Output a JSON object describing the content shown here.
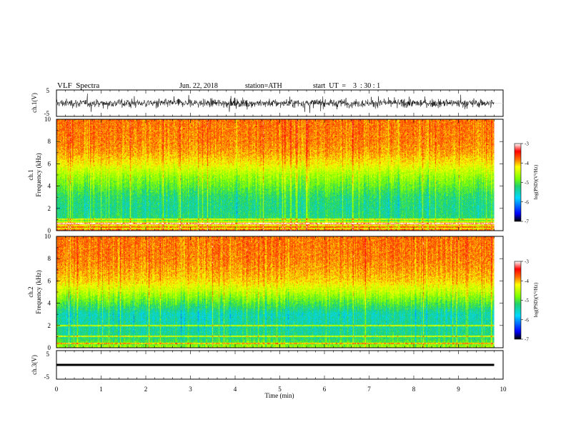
{
  "header": {
    "title": "VLF  Spectra",
    "date": "Jun. 22, 2018",
    "station": "station=ATH",
    "start_ut": "start  UT  =    3  : 30 : 1"
  },
  "chart_data": [
    {
      "type": "line",
      "name": "ch1-waveform",
      "ylabel": "ch.1(V)",
      "ylim": [
        -5,
        5
      ],
      "yticks": [
        "5",
        "-5"
      ],
      "xlim": [
        0,
        10
      ],
      "amplitude_note_rms": 1.1
    },
    {
      "type": "heatmap",
      "name": "ch1-spectrogram",
      "ylabel": "ch.1\nFrequency  (kHz)",
      "ylim": [
        0,
        10
      ],
      "yticks": [
        "0",
        "2",
        "4",
        "6",
        "8",
        "10"
      ],
      "xlim": [
        0,
        10
      ],
      "data_end_min": 9.8,
      "colorbar": {
        "label": "log(PSD)(V²/Hz)",
        "range": [
          -7,
          -3
        ],
        "ticks": [
          "-3",
          "-4",
          "-5",
          "-6",
          "-7"
        ]
      },
      "profile_by_khz": [
        [
          0,
          -3.4
        ],
        [
          0.3,
          -4.7
        ],
        [
          0.6,
          -3.8
        ],
        [
          1.0,
          -5.2
        ],
        [
          2.0,
          -5.3
        ],
        [
          3.0,
          -5.2
        ],
        [
          4.0,
          -4.9
        ],
        [
          5.0,
          -4.6
        ],
        [
          6.0,
          -4.2
        ],
        [
          7.0,
          -3.95
        ],
        [
          8.0,
          -3.85
        ],
        [
          10.0,
          -3.8
        ]
      ],
      "lines_khz": [
        0.3,
        0.65,
        1.0
      ]
    },
    {
      "type": "heatmap",
      "name": "ch2-spectrogram",
      "ylabel": "ch.2\nFrequency  (kHz)",
      "ylim": [
        0,
        10
      ],
      "yticks": [
        "0",
        "2",
        "4",
        "6",
        "8",
        "10"
      ],
      "xlim": [
        0,
        10
      ],
      "data_end_min": 9.8,
      "colorbar": {
        "label": "log(PSD)(V²/Hz)",
        "range": [
          -7,
          -3
        ],
        "ticks": [
          "-3",
          "-4",
          "-5",
          "-6",
          "-7"
        ]
      },
      "profile_by_khz": [
        [
          0,
          -4.6
        ],
        [
          0.5,
          -5.0
        ],
        [
          1.0,
          -5.3
        ],
        [
          2.0,
          -5.4
        ],
        [
          3.0,
          -5.5
        ],
        [
          4.0,
          -5.0
        ],
        [
          5.0,
          -4.5
        ],
        [
          6.0,
          -4.1
        ],
        [
          7.0,
          -3.95
        ],
        [
          8.0,
          -3.85
        ],
        [
          10.0,
          -3.8
        ]
      ],
      "lines_khz": [
        0.4,
        1.0,
        2.0
      ]
    },
    {
      "type": "line",
      "name": "ch3-waveform",
      "ylabel": "ch.3(V)",
      "ylim": [
        -5,
        5
      ],
      "yticks": [
        "5",
        "-5"
      ],
      "xlim": [
        0,
        10
      ],
      "level_v": 0,
      "xlabel": "Time  (min)",
      "xticks": [
        "0",
        "1",
        "2",
        "3",
        "4",
        "5",
        "6",
        "7",
        "8",
        "9",
        "10"
      ]
    }
  ]
}
